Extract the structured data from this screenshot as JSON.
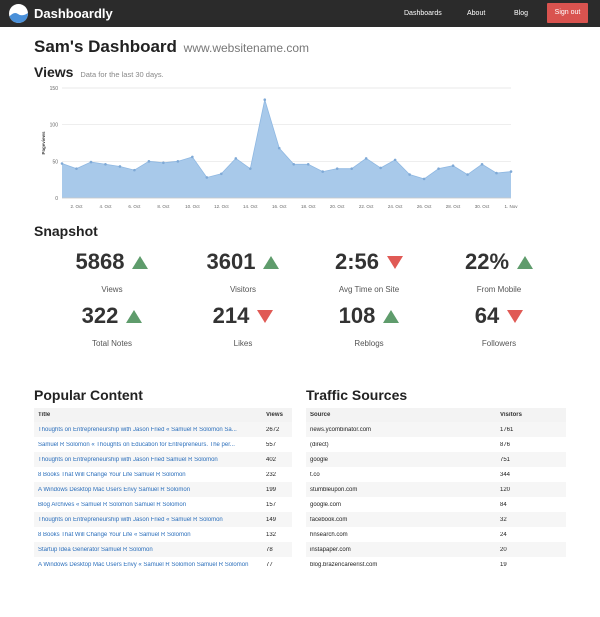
{
  "nav": {
    "brand": "Dashboardly",
    "links": [
      "Dashboards",
      "About",
      "Blog"
    ],
    "signout": "Sign out"
  },
  "header": {
    "title": "Sam's Dashboard",
    "subtitle": "www.websitename.com"
  },
  "views": {
    "title": "Views",
    "note": "Data for the last 30 days."
  },
  "chart_data": {
    "type": "area",
    "ylabel": "Pageviews",
    "ylim": [
      0,
      150
    ],
    "yticks": [
      0,
      50,
      100,
      150
    ],
    "x": [
      "1. Oct",
      "2. Oct",
      "3. Oct",
      "4. Oct",
      "5. Oct",
      "6. Oct",
      "7. Oct",
      "8. Oct",
      "9. Oct",
      "10. Oct",
      "11. Oct",
      "12. Oct",
      "13. Oct",
      "14. Oct",
      "15. Oct",
      "16. Oct",
      "17. Oct",
      "18. Oct",
      "19. Oct",
      "20. Oct",
      "21. Oct",
      "22. Oct",
      "23. Oct",
      "24. Oct",
      "25. Oct",
      "26. Oct",
      "27. Oct",
      "28. Oct",
      "29. Oct",
      "30. Oct",
      "31. Oct",
      "1. Nov"
    ],
    "xtick_labels": [
      "2. Oct",
      "4. Oct",
      "6. Oct",
      "8. Oct",
      "10. Oct",
      "12. Oct",
      "14. Oct",
      "16. Oct",
      "18. Oct",
      "20. Oct",
      "22. Oct",
      "24. Oct",
      "26. Oct",
      "28. Oct",
      "30. Oct",
      "1. Nov"
    ],
    "values": [
      47,
      40,
      49,
      46,
      43,
      38,
      50,
      48,
      50,
      56,
      28,
      33,
      54,
      40,
      134,
      68,
      46,
      46,
      36,
      40,
      40,
      54,
      41,
      52,
      32,
      26,
      40,
      44,
      32,
      46,
      34,
      36
    ],
    "color": "#a8c9ea",
    "grid": true
  },
  "snapshot": {
    "title": "Snapshot",
    "stats": [
      {
        "value": "5868",
        "label": "Views",
        "trend": "up"
      },
      {
        "value": "3601",
        "label": "Visitors",
        "trend": "up"
      },
      {
        "value": "2:56",
        "label": "Avg Time on Site",
        "trend": "down"
      },
      {
        "value": "22%",
        "label": "From Mobile",
        "trend": "up"
      },
      {
        "value": "322",
        "label": "Total Notes",
        "trend": "up"
      },
      {
        "value": "214",
        "label": "Likes",
        "trend": "down"
      },
      {
        "value": "108",
        "label": "Reblogs",
        "trend": "up"
      },
      {
        "value": "64",
        "label": "Followers",
        "trend": "down"
      }
    ]
  },
  "popular": {
    "title": "Popular Content",
    "headers": [
      "Title",
      "Views"
    ],
    "rows": [
      [
        "Thoughts on Entrepreneurship with Jason Fried « Samuel R Solomon Sa...",
        "2672"
      ],
      [
        "Samuel R Solomon « Thoughts on Education for Entrepreneurs. The per...",
        "557"
      ],
      [
        "Thoughts on Entrepreneurship with Jason Fried Samuel R Solomon",
        "402"
      ],
      [
        "8 Books That Will Change Your Life Samuel R Solomon",
        "232"
      ],
      [
        "A Windows Desktop Mac Users Envy Samuel R Solomon",
        "199"
      ],
      [
        "Blog Archives « Samuel R Solomon Samuel R Solomon",
        "157"
      ],
      [
        "Thoughts on Entrepreneurship with Jason Fried « Samuel R Solomon",
        "149"
      ],
      [
        "8 Books That Will Change Your Life « Samuel R Solomon",
        "132"
      ],
      [
        "Startup Idea Generator Samuel R Solomon",
        "78"
      ],
      [
        "A Windows Desktop Mac Users Envy « Samuel R Solomon Samuel R Solomon",
        "77"
      ]
    ]
  },
  "traffic": {
    "title": "Traffic Sources",
    "headers": [
      "Source",
      "Visitors"
    ],
    "rows": [
      [
        "news.ycombinator.com",
        "1761"
      ],
      [
        "(direct)",
        "876"
      ],
      [
        "google",
        "751"
      ],
      [
        "t.co",
        "344"
      ],
      [
        "stumbleupon.com",
        "120"
      ],
      [
        "google.com",
        "84"
      ],
      [
        "facebook.com",
        "32"
      ],
      [
        "hnsearch.com",
        "24"
      ],
      [
        "instapaper.com",
        "20"
      ],
      [
        "blog.brazencareerist.com",
        "19"
      ]
    ]
  },
  "colors": {
    "navbar": "#2b2b2b",
    "signout": "#d9534f",
    "up": "#5f9c6c",
    "down": "#e05a55",
    "link": "#2a6ebb"
  }
}
